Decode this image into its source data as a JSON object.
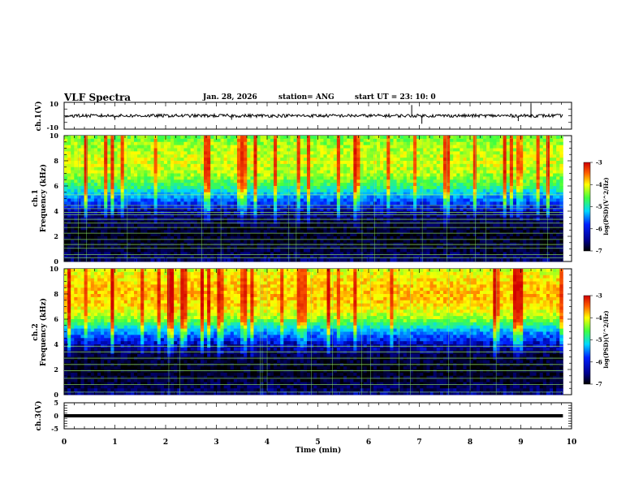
{
  "header": {
    "title": "VLF Spectra",
    "date": "Jan. 28, 2026",
    "station": "station= ANG",
    "start": "start  UT =   23: 10: 0"
  },
  "colors": {
    "background": "#ffffff",
    "axis": "#000000",
    "trace": "#000000"
  },
  "chart_data": [
    {
      "type": "line",
      "id": "ch1-waveform",
      "ylabel": "ch.1(V)",
      "ylim": [
        -10,
        10
      ],
      "ytick_labels": [
        "10",
        "-10"
      ],
      "x_range_min": [
        0,
        10
      ],
      "baseline_value": 0,
      "trace_amplitude": 1.2,
      "spikes": [
        {
          "t": 1.0,
          "v": -3
        },
        {
          "t": 3.3,
          "v": -3
        },
        {
          "t": 6.85,
          "v": 8
        },
        {
          "t": 7.05,
          "v": -6
        },
        {
          "t": 8.95,
          "v": -4
        },
        {
          "t": 9.2,
          "v": 9
        }
      ],
      "series": [
        {
          "name": "ch.1 waveform",
          "values": "continuous noise trace around 0 V"
        }
      ]
    },
    {
      "type": "heatmap",
      "id": "ch1-spectrogram",
      "ylabel_line1": "ch.1",
      "ylabel_line2": "Frequency (kHz)",
      "ylim": [
        0,
        10
      ],
      "ytick_labels": [
        "0",
        "2",
        "4",
        "6",
        "8",
        "10"
      ],
      "x_range_min": [
        0,
        9.83
      ],
      "colorbar": {
        "label": "log(PSD)(V^2/Hz)",
        "range": [
          -7,
          -3
        ],
        "tick_labels": [
          "-3",
          "-4",
          "-5",
          "-6",
          "-7"
        ]
      },
      "profile_description": "high PSD above 6 kHz with vertical sferic bursts; low PSD band 0.3-4 kHz with horizontal narrowband lines",
      "narrowband_lines_kHz": [
        0.3,
        0.55,
        1.05,
        1.35,
        1.75,
        2.25,
        2.7,
        3.05,
        3.35,
        3.7,
        3.9,
        4.2,
        4.45,
        5.3
      ],
      "power_profile": [
        {
          "f": 0,
          "log_psd": -6.6
        },
        {
          "f": 0.5,
          "log_psd": -6.7
        },
        {
          "f": 1,
          "log_psd": -6.8
        },
        {
          "f": 2,
          "log_psd": -6.9
        },
        {
          "f": 3,
          "log_psd": -6.8
        },
        {
          "f": 4,
          "log_psd": -6.5
        },
        {
          "f": 5,
          "log_psd": -5.9
        },
        {
          "f": 6,
          "log_psd": -5.2
        },
        {
          "f": 7,
          "log_psd": -4.8
        },
        {
          "f": 8,
          "log_psd": -4.7
        },
        {
          "f": 9,
          "log_psd": -4.8
        },
        {
          "f": 10,
          "log_psd": -5.0
        }
      ]
    },
    {
      "type": "heatmap",
      "id": "ch2-spectrogram",
      "ylabel_line1": "ch.2",
      "ylabel_line2": "Frequency (kHz)",
      "ylim": [
        0,
        10
      ],
      "ytick_labels": [
        "0",
        "2",
        "4",
        "6",
        "8",
        "10"
      ],
      "x_range_min": [
        0,
        9.83
      ],
      "colorbar": {
        "label": "log(PSD)(V^2/Hz)",
        "range": [
          -7,
          -3
        ],
        "tick_labels": [
          "-3",
          "-4",
          "-5",
          "-6",
          "-7"
        ]
      },
      "profile_description": "strong PSD 6-10 kHz with orange/red sferics; dark band 0.2-4 kHz with narrowband lines",
      "narrowband_lines_kHz": [
        0.2,
        0.8,
        1.3,
        1.9,
        2.4,
        2.9,
        3.4,
        3.85
      ],
      "power_profile": [
        {
          "f": 0,
          "log_psd": -6.5
        },
        {
          "f": 0.5,
          "log_psd": -6.7
        },
        {
          "f": 1,
          "log_psd": -6.8
        },
        {
          "f": 2,
          "log_psd": -6.9
        },
        {
          "f": 3,
          "log_psd": -6.8
        },
        {
          "f": 4,
          "log_psd": -6.4
        },
        {
          "f": 5,
          "log_psd": -5.8
        },
        {
          "f": 6,
          "log_psd": -4.9
        },
        {
          "f": 7,
          "log_psd": -4.5
        },
        {
          "f": 8,
          "log_psd": -4.4
        },
        {
          "f": 9,
          "log_psd": -4.5
        },
        {
          "f": 10,
          "log_psd": -4.7
        }
      ]
    },
    {
      "type": "line",
      "id": "ch3-waveform",
      "ylabel": "ch.3(V)",
      "ylim": [
        -5,
        5
      ],
      "ytick_labels": [
        "5",
        "0",
        "-5"
      ],
      "x_range_min": [
        0,
        9.83
      ],
      "baseline_value": 0,
      "series": [
        {
          "name": "ch.3 waveform",
          "values": "flat trace at 0 V"
        }
      ]
    }
  ],
  "xaxis": {
    "label": "Time (min)",
    "range": [
      0,
      10
    ],
    "tick_labels": [
      "0",
      "1",
      "2",
      "3",
      "4",
      "5",
      "6",
      "7",
      "8",
      "9",
      "10"
    ]
  }
}
